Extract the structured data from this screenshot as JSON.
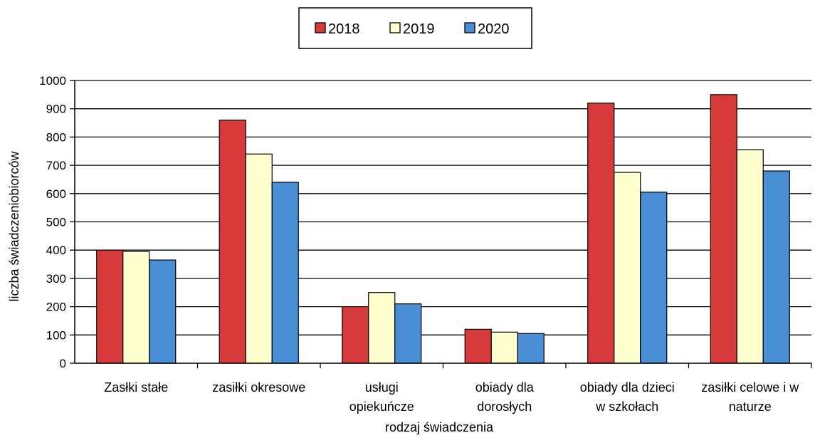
{
  "chart_data": {
    "type": "bar",
    "title": "",
    "xlabel": "rodzaj świadczenia",
    "ylabel": "liczba świadczeniobiorców",
    "ylim": [
      0,
      1000
    ],
    "yticks": [
      0,
      100,
      200,
      300,
      400,
      500,
      600,
      700,
      800,
      900,
      1000
    ],
    "grid": true,
    "legend_position": "top-center",
    "categories": [
      [
        "Zasłki stałe"
      ],
      [
        "zasiłki okresowe"
      ],
      [
        "usługi",
        "opiekuńcze"
      ],
      [
        "obiady dla",
        "dorosłych"
      ],
      [
        "obiady dla dzieci",
        "w szkołach"
      ],
      [
        "zasiłki celowe i w",
        "naturze"
      ]
    ],
    "series": [
      {
        "name": "2018",
        "color": "#d63a3a",
        "values": [
          400,
          860,
          200,
          120,
          920,
          950
        ]
      },
      {
        "name": "2019",
        "color": "#ffffd0",
        "values": [
          395,
          740,
          250,
          110,
          675,
          755
        ]
      },
      {
        "name": "2020",
        "color": "#4a8fd6",
        "values": [
          365,
          640,
          210,
          105,
          605,
          680
        ]
      }
    ]
  }
}
